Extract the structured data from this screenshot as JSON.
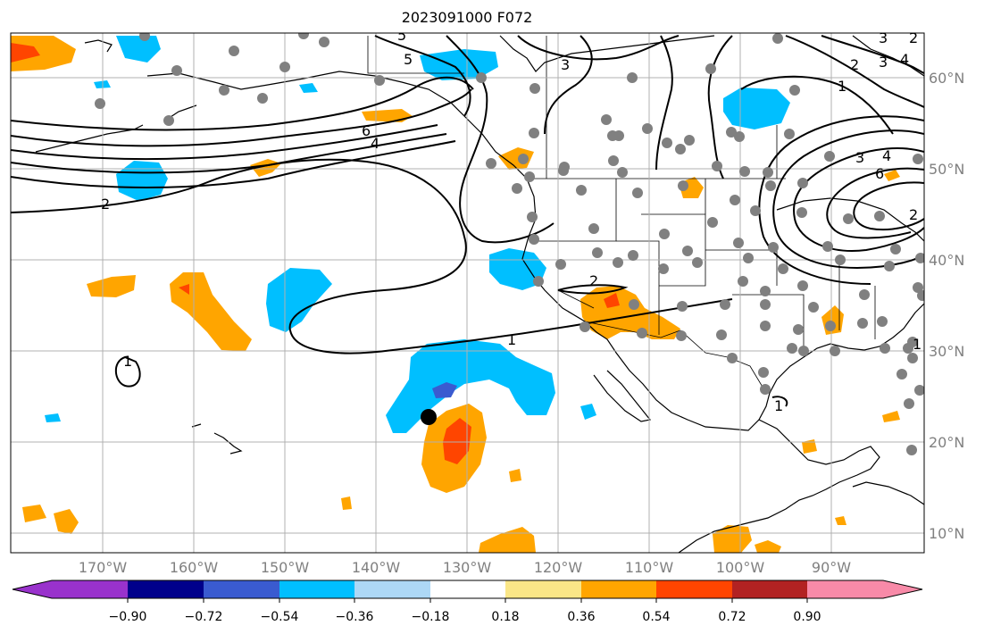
{
  "title": "2023091000 F072",
  "map": {
    "lon_labels": [
      "170°W",
      "160°W",
      "150°W",
      "140°W",
      "130°W",
      "120°W",
      "110°W",
      "100°W",
      "90°W"
    ],
    "lat_labels": [
      "60°N",
      "50°N",
      "40°N",
      "30°N",
      "20°N",
      "10°N"
    ],
    "contour_labels": [
      "5",
      "5",
      "3",
      "3",
      "2",
      "3",
      "4",
      "2",
      "6",
      "4",
      "2",
      "1",
      "6",
      "4",
      "3",
      "2",
      "2",
      "1",
      "1",
      "1",
      "1"
    ],
    "storm_marker": "black-circle",
    "station_marker_color": "#808080"
  },
  "colorbar": {
    "colors": [
      "#9932cc",
      "#00008b",
      "#3a5bd0",
      "#00bfff",
      "#add8f6",
      "#ffffff",
      "#fae687",
      "#ffa500",
      "#ff4500",
      "#b22222",
      "#f88aa8"
    ],
    "tick_labels": [
      "−0.90",
      "−0.72",
      "−0.54",
      "−0.36",
      "−0.18",
      "0.18",
      "0.36",
      "0.54",
      "0.72",
      "0.90"
    ]
  }
}
